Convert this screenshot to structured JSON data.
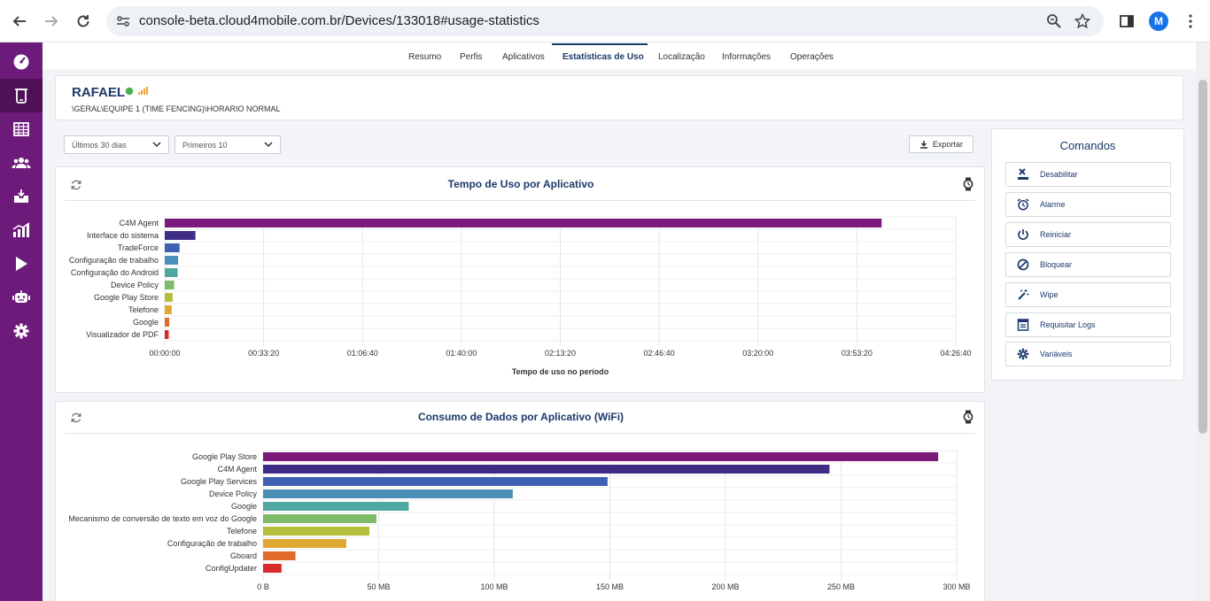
{
  "browser": {
    "url": "console-beta.cloud4mobile.com.br/Devices/133018#usage-statistics",
    "profile_initial": "M"
  },
  "sidebar": {
    "items": [
      {
        "icon": "dashboard-icon",
        "active": false
      },
      {
        "icon": "device-icon",
        "active": true
      },
      {
        "icon": "table-icon",
        "active": false
      },
      {
        "icon": "users-icon",
        "active": false
      },
      {
        "icon": "inbox-icon",
        "active": false
      },
      {
        "icon": "reports-icon",
        "active": false
      },
      {
        "icon": "play-store-icon",
        "active": false
      },
      {
        "icon": "android-icon",
        "active": false
      },
      {
        "icon": "settings-icon",
        "active": false
      }
    ]
  },
  "tabs": [
    {
      "label": "Resumo",
      "active": false
    },
    {
      "label": "Perfis",
      "active": false
    },
    {
      "label": "Aplicativos",
      "active": false
    },
    {
      "label": "Estatísticas de Uso",
      "active": true
    },
    {
      "label": "Localização",
      "active": false
    },
    {
      "label": "Informações",
      "active": false
    },
    {
      "label": "Operações",
      "active": false
    }
  ],
  "device": {
    "name": "RAFAEL",
    "path": "\\GERAL\\EQUIPE 1 (TIME FENCING)\\HORARIO NORMAL",
    "status_color": "#4caf50",
    "signal_color": "#f0a030"
  },
  "filters": {
    "period": "Últimos 30 dias",
    "top": "Primeiros 10",
    "export_label": "Exportar"
  },
  "commands": {
    "title": "Comandos",
    "items": [
      {
        "label": "Desabilitar",
        "icon": "disable-icon"
      },
      {
        "label": "Alarme",
        "icon": "alarm-icon"
      },
      {
        "label": "Reiniciar",
        "icon": "power-icon"
      },
      {
        "label": "Bloquear",
        "icon": "block-icon"
      },
      {
        "label": "Wipe",
        "icon": "wipe-icon"
      },
      {
        "label": "Requisitar Logs",
        "icon": "logs-icon"
      },
      {
        "label": "Variáveis",
        "icon": "gear-icon"
      }
    ]
  },
  "chart_data": [
    {
      "type": "bar",
      "orientation": "horizontal",
      "title": "Tempo de Uso por Aplicativo",
      "xlabel": "Tempo de uso no período",
      "ylabel": "",
      "unit": "seconds",
      "xlim": [
        0,
        16000
      ],
      "tick_values": [
        0,
        2000,
        4000,
        6000,
        8000,
        10000,
        12000,
        14000,
        16000
      ],
      "tick_labels": [
        "00:00:00",
        "00:33:20",
        "01:06:40",
        "01:40:00",
        "02:13:20",
        "02:46:40",
        "03:20:00",
        "03:53:20",
        "04:26:40"
      ],
      "categories": [
        "C4M Agent",
        "Interface do sistema",
        "TradeForce",
        "Configuração de trabalho",
        "Configuração do Android",
        "Device Policy",
        "Google Play Store",
        "Telefone",
        "Google",
        "Visualizador de PDF"
      ],
      "values": [
        14500,
        620,
        300,
        270,
        260,
        190,
        160,
        140,
        90,
        80
      ],
      "colors": [
        "#7b1a7b",
        "#3e2c86",
        "#3f5fb5",
        "#4a8fb8",
        "#4fa8a0",
        "#7dbb6a",
        "#b5bf3e",
        "#e0a830",
        "#e06a2a",
        "#d92a2a"
      ]
    },
    {
      "type": "bar",
      "orientation": "horizontal",
      "title": "Consumo de Dados por Aplicativo (WiFi)",
      "xlabel": "",
      "ylabel": "",
      "unit": "MB",
      "xlim": [
        0,
        300
      ],
      "tick_values": [
        0,
        50,
        100,
        150,
        200,
        250,
        300
      ],
      "tick_labels": [
        "0 B",
        "50 MB",
        "100 MB",
        "150 MB",
        "200 MB",
        "250 MB",
        "300 MB"
      ],
      "categories": [
        "Google Play Store",
        "C4M Agent",
        "Google Play Services",
        "Device Policy",
        "Google",
        "Mecanismo de conversão de texto em voz do Google",
        "Telefone",
        "Configuração de trabalho",
        "Gboard",
        "ConfigUpdater"
      ],
      "values": [
        292,
        245,
        149,
        108,
        63,
        49,
        46,
        36,
        14,
        8
      ],
      "colors": [
        "#7b1a7b",
        "#3e2c86",
        "#3f5fb5",
        "#4a8fb8",
        "#4fa8a0",
        "#7dbb6a",
        "#b5bf3e",
        "#e0a830",
        "#e06a2a",
        "#d92a2a"
      ]
    }
  ]
}
